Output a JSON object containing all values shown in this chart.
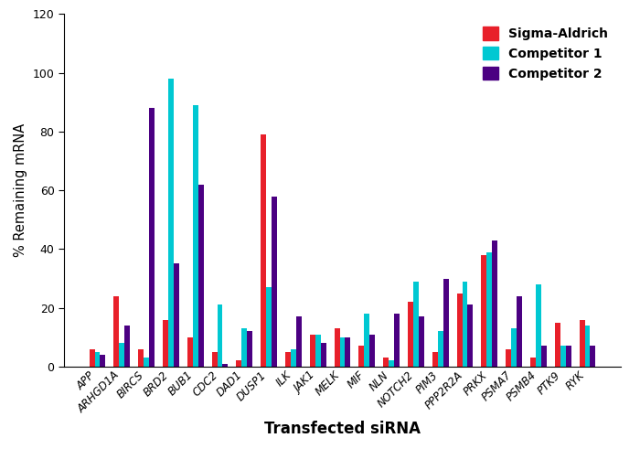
{
  "categories": [
    "APP",
    "ARHGD1A",
    "BIRCS",
    "BRD2",
    "BUB1",
    "CDC2",
    "DAD1",
    "DUSP1",
    "ILK",
    "JAK1",
    "MELK",
    "MIF",
    "NLN",
    "NOTCH2",
    "PIM3",
    "PPP2R2A",
    "PRKX",
    "PSMA7",
    "PSMB4",
    "PTK9",
    "RYK"
  ],
  "sigma_aldrich": [
    6,
    24,
    6,
    16,
    10,
    5,
    2,
    79,
    5,
    11,
    13,
    7,
    3,
    22,
    5,
    25,
    38,
    6,
    3,
    15,
    16
  ],
  "competitor1": [
    5,
    8,
    3,
    98,
    89,
    21,
    13,
    27,
    6,
    11,
    10,
    18,
    2,
    29,
    12,
    29,
    39,
    13,
    28,
    7,
    14
  ],
  "competitor2": [
    4,
    14,
    88,
    35,
    62,
    1,
    12,
    58,
    17,
    8,
    10,
    11,
    18,
    17,
    30,
    21,
    43,
    24,
    7,
    7,
    7
  ],
  "sigma_color": "#e8202a",
  "comp1_color": "#00c8d2",
  "comp2_color": "#4b0082",
  "ylabel": "% Remaining mRNA",
  "xlabel": "Transfected siRNA",
  "ylim": [
    0,
    120
  ],
  "yticks": [
    0,
    20,
    40,
    60,
    80,
    100,
    120
  ],
  "legend_labels": [
    "Sigma-Aldrich",
    "Competitor 1",
    "Competitor 2"
  ],
  "bar_width": 0.22
}
